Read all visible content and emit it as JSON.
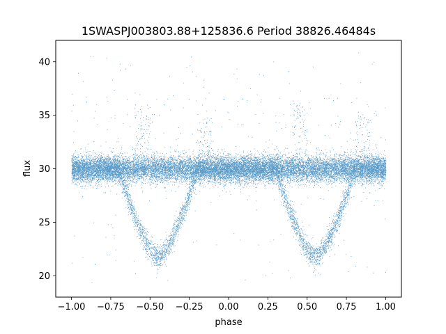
{
  "chart_data": {
    "type": "scatter",
    "title": "1SWASPJ003803.88+125836.6 Period 38826.46484s",
    "xlabel": "phase",
    "ylabel": "flux",
    "xlim": [
      -1.1,
      1.1
    ],
    "ylim": [
      18,
      42
    ],
    "xticks": [
      -1.0,
      -0.75,
      -0.5,
      -0.25,
      0.0,
      0.25,
      0.5,
      0.75,
      1.0
    ],
    "xtick_labels": [
      "−1.00",
      "−0.75",
      "−0.50",
      "−0.25",
      "0.00",
      "0.25",
      "0.50",
      "0.75",
      "1.00"
    ],
    "yticks": [
      20,
      25,
      30,
      35,
      40
    ],
    "ytick_labels": [
      "20",
      "25",
      "30",
      "35",
      "40"
    ],
    "grid": false,
    "marker_color": "#1f77b4",
    "phase_range": [
      -1.0,
      1.0
    ],
    "series": [
      {
        "light_curve": {
          "baseline_flux": 30.0,
          "baseline_scatter": 0.6,
          "eclipses": [
            {
              "center_phase": -0.45,
              "min_flux": 21.8,
              "half_width": 0.25
            },
            {
              "center_phase": 0.55,
              "min_flux": 21.8,
              "half_width": 0.25
            }
          ],
          "bright_excursions": [
            {
              "phase": -0.55,
              "max_flux": 36.0
            },
            {
              "phase": 0.45,
              "max_flux": 36.0
            },
            {
              "phase": -0.15,
              "max_flux": 35.0
            },
            {
              "phase": 0.85,
              "max_flux": 35.0
            }
          ],
          "outlier_range": [
            19,
            41
          ]
        },
        "approx_point_count": 22000
      }
    ]
  }
}
